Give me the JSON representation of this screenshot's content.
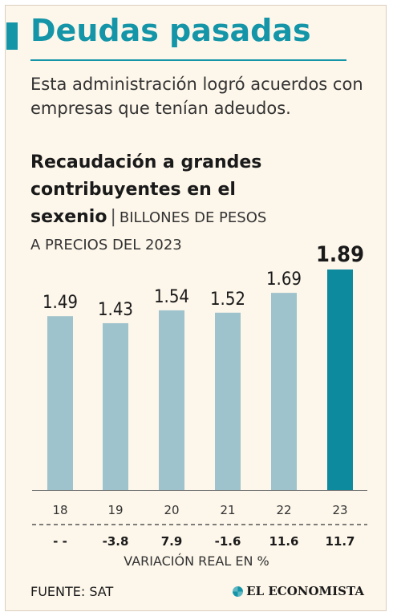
{
  "header": {
    "title": "Deudas pasadas",
    "subtitle": "Esta administración logró acuerdos con empresas que tenían adeudos."
  },
  "chart_header": {
    "title": "Recaudación a grandes contribuyentes en el sexenio",
    "separator": "|",
    "unit_line1": "BILLONES DE PESOS",
    "unit_line2": "A PRECIOS DEL 2023"
  },
  "chart_data": {
    "type": "bar",
    "title": "Recaudación a grandes contribuyentes en el sexenio",
    "ylabel": "BILLONES DE PESOS A PRECIOS DEL 2023",
    "xlabel": "",
    "categories": [
      "18",
      "19",
      "20",
      "21",
      "22",
      "23"
    ],
    "values": [
      1.49,
      1.43,
      1.54,
      1.52,
      1.69,
      1.89
    ],
    "value_labels": [
      "1.49",
      "1.43",
      "1.54",
      "1.52",
      "1.69",
      "1.89"
    ],
    "highlight_index": 5,
    "ylim": [
      0,
      1.89
    ],
    "grid": false,
    "colors": {
      "bar": "#9fc3cc",
      "highlight": "#0e8a9e"
    },
    "secondary_row": {
      "label": "VARIACIÓN REAL EN %",
      "values": [
        "- -",
        "-3.8",
        "7.9",
        "-1.6",
        "11.6",
        "11.7"
      ]
    }
  },
  "footer": {
    "source": "FUENTE: SAT",
    "brand": "EL ECONOMISTA"
  },
  "colors": {
    "accent": "#1495a8",
    "background": "#fdf6ea"
  }
}
